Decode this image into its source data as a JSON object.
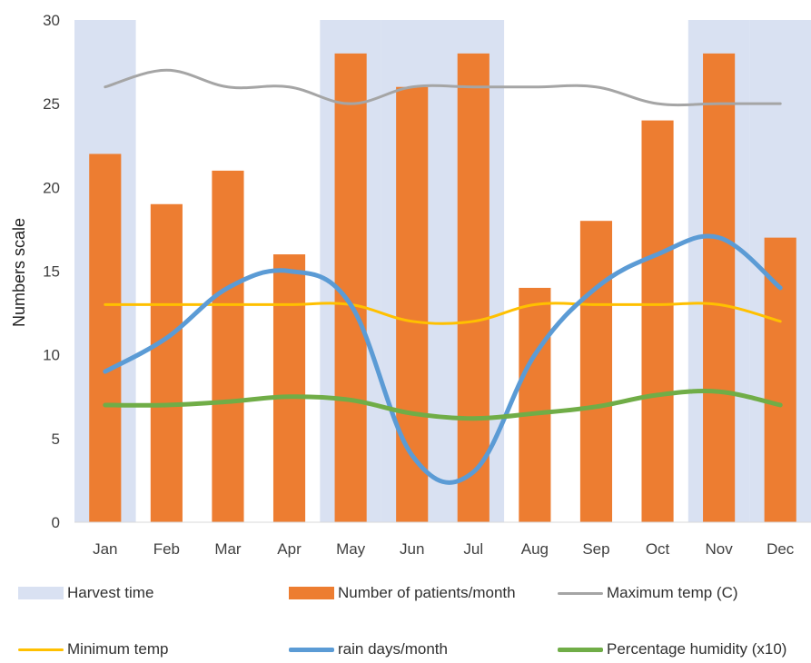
{
  "chart_data": {
    "type": "bar",
    "ylabel": "Numbers scale",
    "xlabel": "",
    "ylim": [
      0,
      30
    ],
    "yticks": [
      0,
      5,
      10,
      15,
      20,
      25,
      30
    ],
    "grid": false,
    "legend_position": "bottom",
    "categories": [
      "Jan",
      "Feb",
      "Mar",
      "Apr",
      "May",
      "Jun",
      "Jul",
      "Aug",
      "Sep",
      "Oct",
      "Nov",
      "Dec"
    ],
    "harvest": {
      "name": "Harvest time",
      "months": [
        "Jan",
        "May",
        "Jun",
        "Jul",
        "Nov",
        "Dec"
      ],
      "color": "#d9e1f2"
    },
    "bars": {
      "name": "Number of patients/month",
      "values": [
        22,
        19,
        21,
        16,
        28,
        26,
        28,
        14,
        18,
        24,
        28,
        17
      ],
      "color": "#ed7d31"
    },
    "series": [
      {
        "name": "Maximum temp (C)",
        "values": [
          26,
          27,
          26,
          26,
          25,
          26,
          26,
          26,
          26,
          25,
          25,
          25
        ],
        "color": "#a5a5a5",
        "width": 3
      },
      {
        "name": "Minimum temp",
        "values": [
          13,
          13,
          13,
          13,
          13,
          12,
          12,
          13,
          13,
          13,
          13,
          12
        ],
        "color": "#ffc000",
        "width": 3
      },
      {
        "name": "rain days/month",
        "values": [
          9,
          11,
          14,
          15,
          13,
          4,
          3,
          10,
          14,
          16,
          17,
          14
        ],
        "color": "#5b9bd5",
        "width": 5
      },
      {
        "name": "Percentage humidity (x10)",
        "values": [
          7,
          7,
          7.2,
          7.5,
          7.3,
          6.5,
          6.2,
          6.5,
          6.9,
          7.6,
          7.8,
          7
        ],
        "color": "#70ad47",
        "width": 5
      }
    ]
  }
}
